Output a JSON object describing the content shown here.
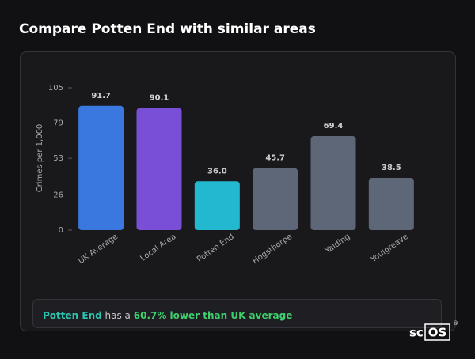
{
  "page_title": "Compare Potten End with similar areas",
  "chart_data": {
    "type": "bar",
    "y_label": "Crimes per 1,000",
    "categories": [
      "UK Average",
      "Local Area",
      "Potten End",
      "Hogsthorpe",
      "Yalding",
      "Youlgreave"
    ],
    "values": [
      91.7,
      90.1,
      36.0,
      45.7,
      69.4,
      38.5
    ],
    "value_labels": [
      "91.7",
      "90.1",
      "36.0",
      "45.7",
      "69.4",
      "38.5"
    ],
    "colors": [
      "#3a78e0",
      "#7a4fd8",
      "#22b8d0",
      "#5d6778",
      "#5d6778",
      "#5d6778"
    ],
    "ylim": [
      0,
      105
    ],
    "yticks": [
      0,
      26,
      53,
      79,
      105
    ]
  },
  "summary": {
    "area": "Potten End",
    "connector": "has a",
    "comparison": "60.7% lower than UK average"
  },
  "brand": {
    "prefix": "sc",
    "boxed": "OS",
    "mark": "®"
  }
}
